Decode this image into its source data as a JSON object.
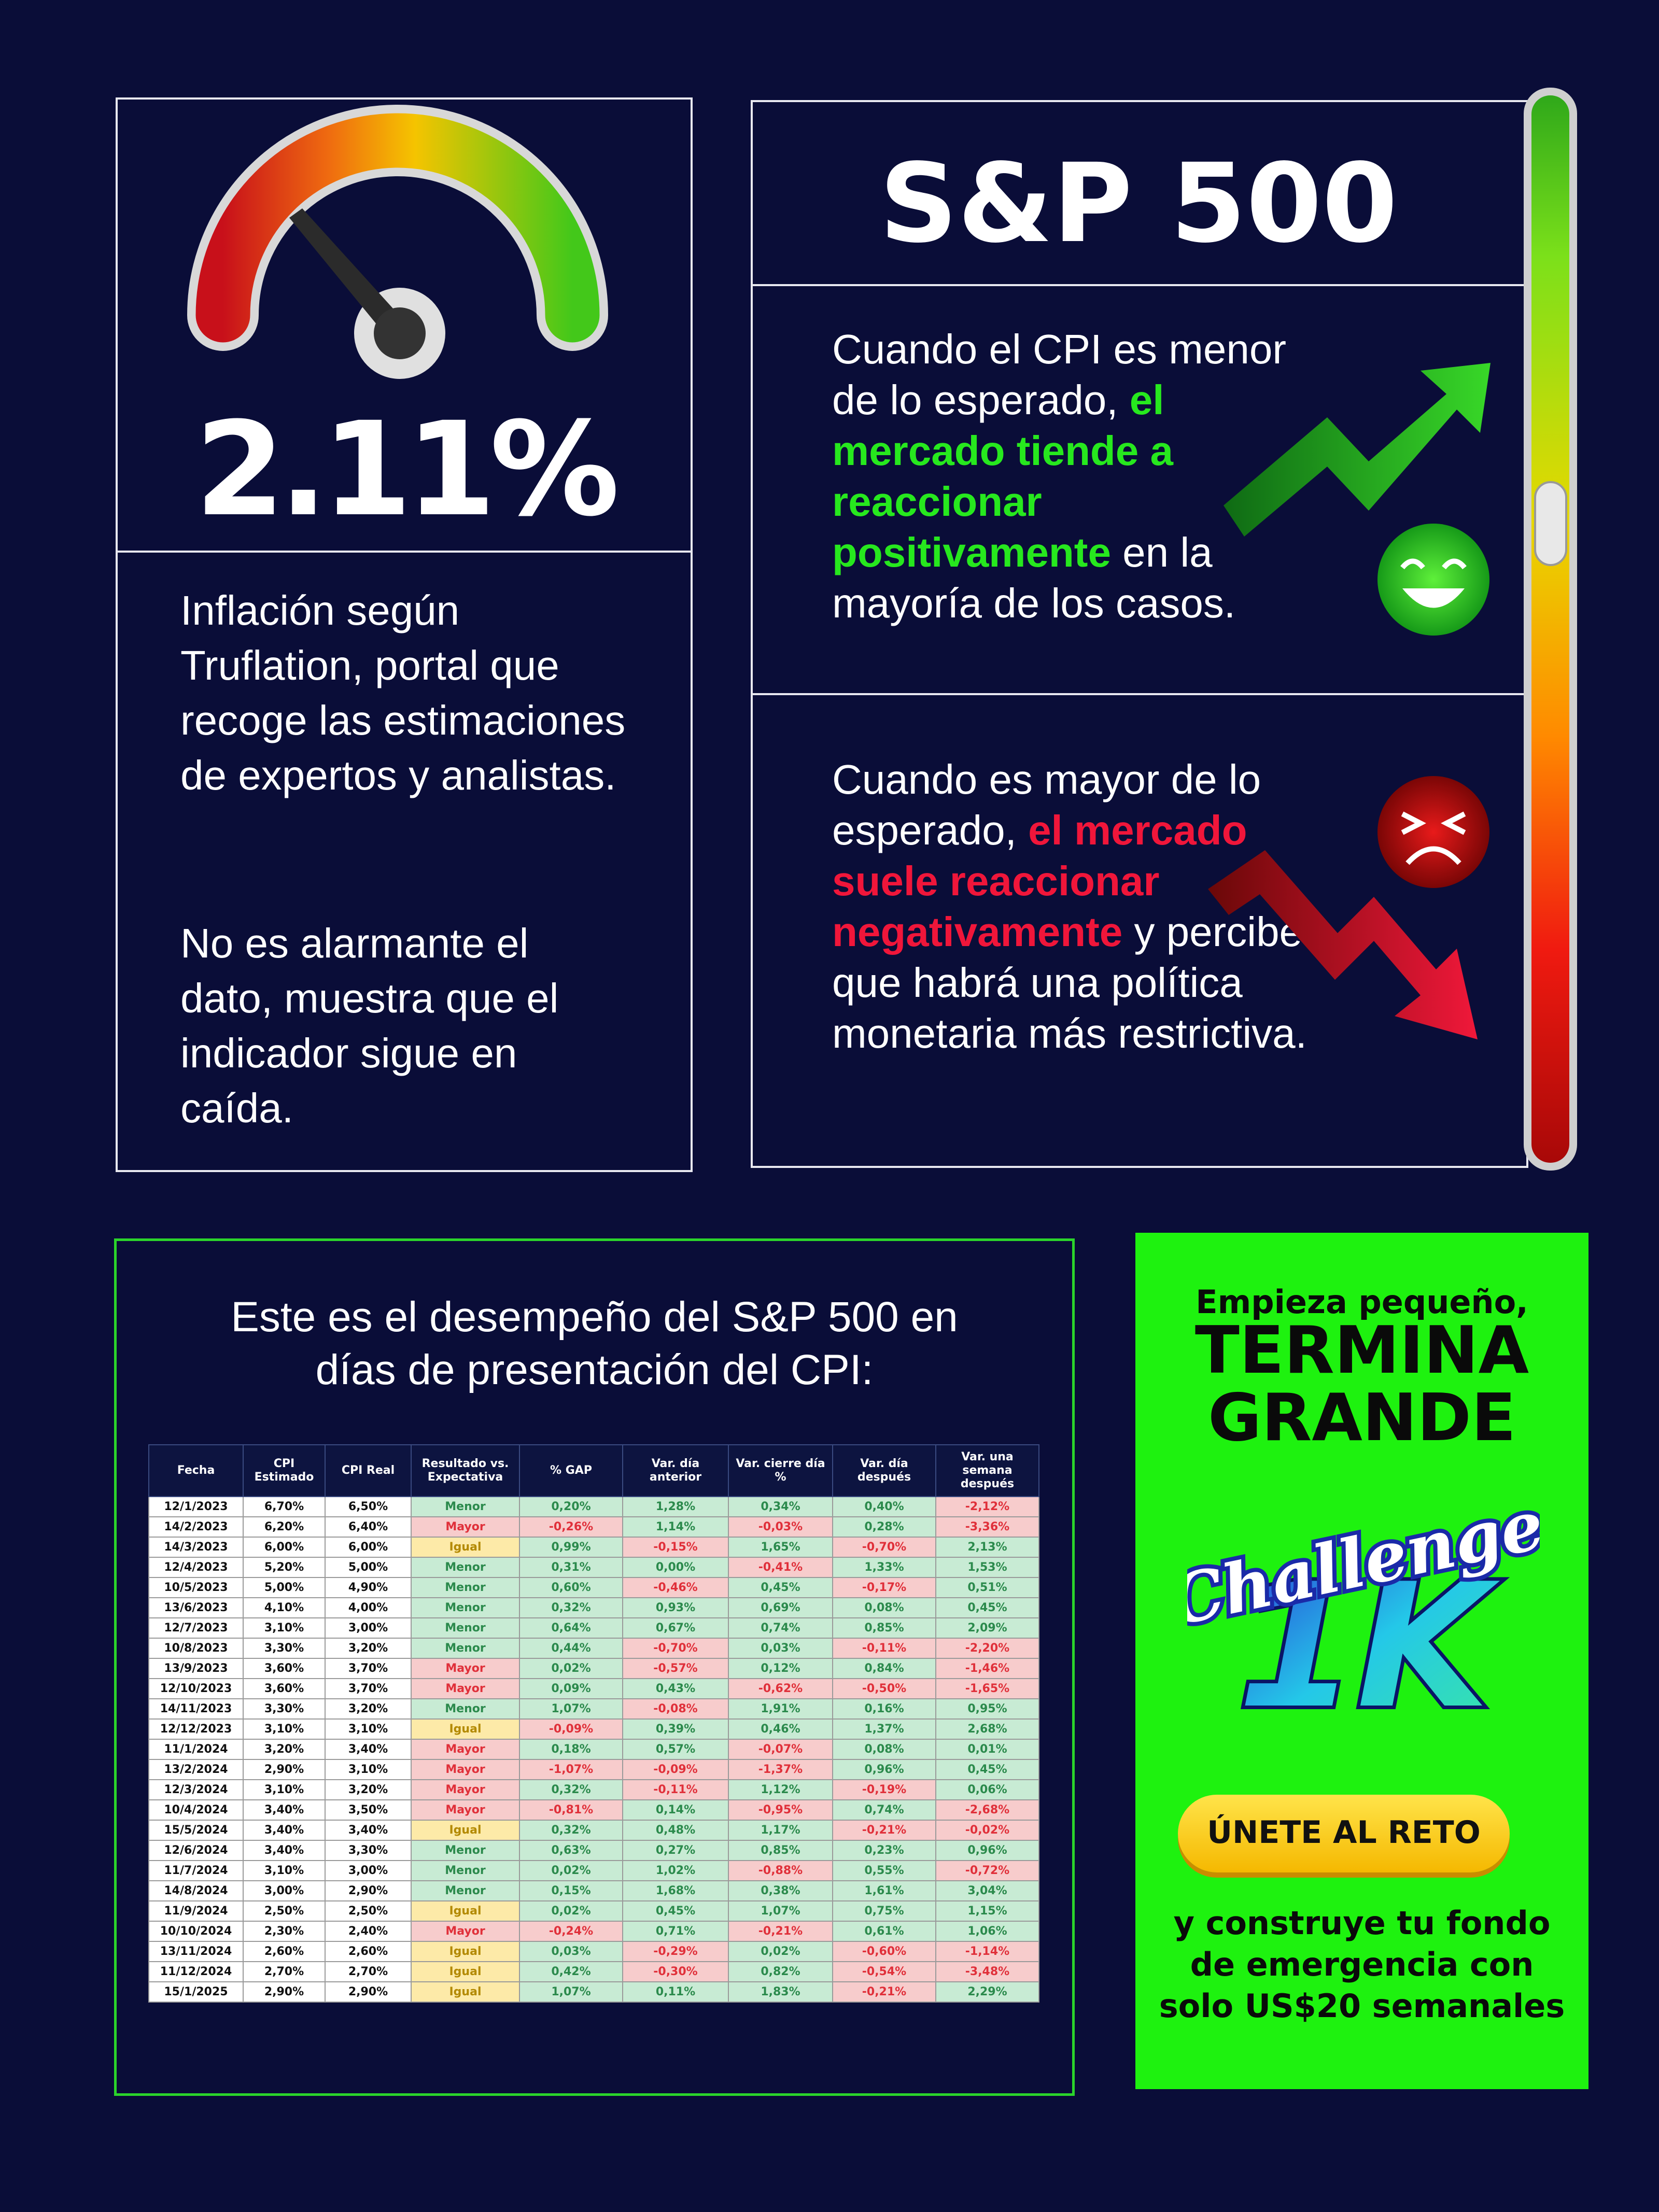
{
  "gauge": {
    "value": "2.11%",
    "description": "Inflación según Truflation, portal que recoge las estimaciones de expertos y analistas.",
    "note": "No es alarmante el dato, muestra que el indicador sigue en caída."
  },
  "sp500": {
    "title": "S&P 500",
    "positive": {
      "before": "Cuando el CPI es menor de lo esperado,",
      "highlight": "el mercado tiende a reaccionar positivamente",
      "after": "en la mayoría de los casos."
    },
    "negative": {
      "before": "Cuando es mayor de lo esperado,",
      "highlight": "el mercado suele reaccionar negativamente",
      "after": "y percibe que habrá una política monetaria más restrictiva."
    }
  },
  "performance": {
    "heading": "Este es el desempeño del S&P 500 en días de presentación del CPI:",
    "table": {
      "columns": [
        "Fecha",
        "CPI Estimado",
        "CPI Real",
        "Resultado vs. Expectativa",
        "% GAP",
        "Var. día anterior",
        "Var. cierre día %",
        "Var. día después",
        "Var. una semana después"
      ],
      "rows": [
        [
          "12/1/2023",
          "6,70%",
          "6,50%",
          "Menor",
          "0,20%",
          "1,28%",
          "0,34%",
          "0,40%",
          "-2,12%"
        ],
        [
          "14/2/2023",
          "6,20%",
          "6,40%",
          "Mayor",
          "-0,26%",
          "1,14%",
          "-0,03%",
          "0,28%",
          "-3,36%"
        ],
        [
          "14/3/2023",
          "6,00%",
          "6,00%",
          "Igual",
          "0,99%",
          "-0,15%",
          "1,65%",
          "-0,70%",
          "2,13%"
        ],
        [
          "12/4/2023",
          "5,20%",
          "5,00%",
          "Menor",
          "0,31%",
          "0,00%",
          "-0,41%",
          "1,33%",
          "1,53%"
        ],
        [
          "10/5/2023",
          "5,00%",
          "4,90%",
          "Menor",
          "0,60%",
          "-0,46%",
          "0,45%",
          "-0,17%",
          "0,51%"
        ],
        [
          "13/6/2023",
          "4,10%",
          "4,00%",
          "Menor",
          "0,32%",
          "0,93%",
          "0,69%",
          "0,08%",
          "0,45%"
        ],
        [
          "12/7/2023",
          "3,10%",
          "3,00%",
          "Menor",
          "0,64%",
          "0,67%",
          "0,74%",
          "0,85%",
          "2,09%"
        ],
        [
          "10/8/2023",
          "3,30%",
          "3,20%",
          "Menor",
          "0,44%",
          "-0,70%",
          "0,03%",
          "-0,11%",
          "-2,20%"
        ],
        [
          "13/9/2023",
          "3,60%",
          "3,70%",
          "Mayor",
          "0,02%",
          "-0,57%",
          "0,12%",
          "0,84%",
          "-1,46%"
        ],
        [
          "12/10/2023",
          "3,60%",
          "3,70%",
          "Mayor",
          "0,09%",
          "0,43%",
          "-0,62%",
          "-0,50%",
          "-1,65%"
        ],
        [
          "14/11/2023",
          "3,30%",
          "3,20%",
          "Menor",
          "1,07%",
          "-0,08%",
          "1,91%",
          "0,16%",
          "0,95%"
        ],
        [
          "12/12/2023",
          "3,10%",
          "3,10%",
          "Igual",
          "-0,09%",
          "0,39%",
          "0,46%",
          "1,37%",
          "2,68%"
        ],
        [
          "11/1/2024",
          "3,20%",
          "3,40%",
          "Mayor",
          "0,18%",
          "0,57%",
          "-0,07%",
          "0,08%",
          "0,01%"
        ],
        [
          "13/2/2024",
          "2,90%",
          "3,10%",
          "Mayor",
          "-1,07%",
          "-0,09%",
          "-1,37%",
          "0,96%",
          "0,45%"
        ],
        [
          "12/3/2024",
          "3,10%",
          "3,20%",
          "Mayor",
          "0,32%",
          "-0,11%",
          "1,12%",
          "-0,19%",
          "0,06%"
        ],
        [
          "10/4/2024",
          "3,40%",
          "3,50%",
          "Mayor",
          "-0,81%",
          "0,14%",
          "-0,95%",
          "0,74%",
          "-2,68%"
        ],
        [
          "15/5/2024",
          "3,40%",
          "3,40%",
          "Igual",
          "0,32%",
          "0,48%",
          "1,17%",
          "-0,21%",
          "-0,02%"
        ],
        [
          "12/6/2024",
          "3,40%",
          "3,30%",
          "Menor",
          "0,63%",
          "0,27%",
          "0,85%",
          "0,23%",
          "0,96%"
        ],
        [
          "11/7/2024",
          "3,10%",
          "3,00%",
          "Menor",
          "0,02%",
          "1,02%",
          "-0,88%",
          "0,55%",
          "-0,72%"
        ],
        [
          "14/8/2024",
          "3,00%",
          "2,90%",
          "Menor",
          "0,15%",
          "1,68%",
          "0,38%",
          "1,61%",
          "3,04%"
        ],
        [
          "11/9/2024",
          "2,50%",
          "2,50%",
          "Igual",
          "0,02%",
          "0,45%",
          "1,07%",
          "0,75%",
          "1,15%"
        ],
        [
          "10/10/2024",
          "2,30%",
          "2,40%",
          "Mayor",
          "-0,24%",
          "0,71%",
          "-0,21%",
          "0,61%",
          "1,06%"
        ],
        [
          "13/11/2024",
          "2,60%",
          "2,60%",
          "Igual",
          "0,03%",
          "-0,29%",
          "0,02%",
          "-0,60%",
          "-1,14%"
        ],
        [
          "11/12/2024",
          "2,70%",
          "2,70%",
          "Igual",
          "0,42%",
          "-0,30%",
          "0,82%",
          "-0,54%",
          "-3,48%"
        ],
        [
          "15/1/2025",
          "2,90%",
          "2,90%",
          "Igual",
          "1,07%",
          "0,11%",
          "1,83%",
          "-0,21%",
          "2,29%"
        ]
      ]
    }
  },
  "cta": {
    "kicker": "Empieza pequeño,",
    "headline_1": "TERMINA",
    "headline_2": "GRANDE",
    "logo_text": "Challenge",
    "logo_number": "1K",
    "button": "ÚNETE AL RETO",
    "footer": "y construye tu fondo de emergencia con solo US$20 semanales"
  }
}
